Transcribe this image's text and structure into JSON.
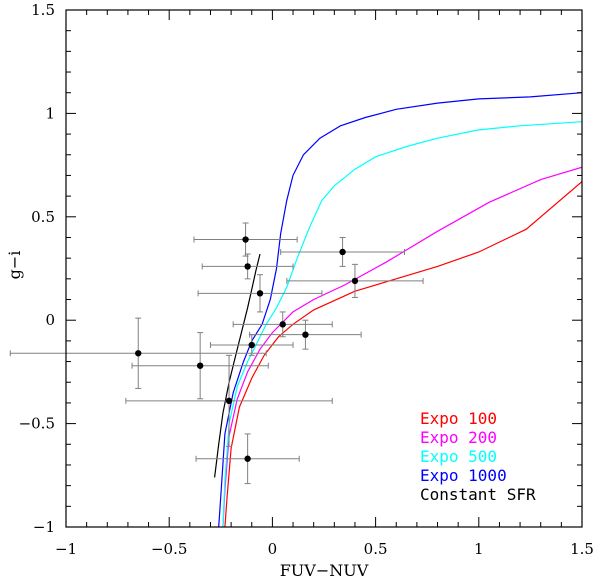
{
  "chart_data": {
    "type": "scatter",
    "title": "",
    "xlabel": "FUV−NUV",
    "ylabel": "g−i",
    "xlim": [
      -1,
      1.5
    ],
    "ylim": [
      -1,
      1.5
    ],
    "grid": false,
    "legend_position": "bottom-right",
    "x_ticks": [
      -1,
      -0.5,
      0,
      0.5,
      1,
      1.5
    ],
    "x_tick_labels": [
      "−1",
      "−0.5",
      "0",
      "0.5",
      "1",
      "1.5"
    ],
    "y_ticks": [
      -1,
      -0.5,
      0,
      0.5,
      1,
      1.5
    ],
    "y_tick_labels": [
      "−1",
      "−0.5",
      "0",
      "0.5",
      "1",
      "1.5"
    ],
    "series": [
      {
        "name": "Expo 100",
        "kind": "line",
        "color": "#ff0000",
        "x": [
          -0.23,
          -0.22,
          -0.2,
          -0.16,
          -0.1,
          -0.04,
          0.03,
          0.1,
          0.2,
          0.4,
          0.6,
          0.8,
          1.0,
          1.23,
          1.5
        ],
        "y": [
          -1.0,
          -0.86,
          -0.62,
          -0.42,
          -0.28,
          -0.17,
          -0.08,
          -0.02,
          0.05,
          0.14,
          0.2,
          0.26,
          0.33,
          0.44,
          0.67
        ]
      },
      {
        "name": "Expo 200",
        "kind": "line",
        "color": "#ff00ff",
        "x": [
          -0.24,
          -0.23,
          -0.21,
          -0.17,
          -0.12,
          -0.06,
          0.0,
          0.05,
          0.1,
          0.2,
          0.35,
          0.55,
          0.8,
          1.05,
          1.3,
          1.5
        ],
        "y": [
          -1.0,
          -0.82,
          -0.56,
          -0.38,
          -0.25,
          -0.14,
          -0.06,
          -0.01,
          0.04,
          0.1,
          0.17,
          0.28,
          0.43,
          0.57,
          0.68,
          0.74
        ]
      },
      {
        "name": "Expo 500",
        "kind": "line",
        "color": "#00ffff",
        "x": [
          -0.24,
          -0.23,
          -0.21,
          -0.17,
          -0.12,
          -0.07,
          -0.03,
          0.02,
          0.07,
          0.12,
          0.18,
          0.24,
          0.3,
          0.4,
          0.5,
          0.65,
          0.8,
          1.0,
          1.2,
          1.5
        ],
        "y": [
          -1.0,
          -0.78,
          -0.5,
          -0.32,
          -0.2,
          -0.1,
          -0.02,
          0.06,
          0.16,
          0.3,
          0.45,
          0.58,
          0.65,
          0.73,
          0.79,
          0.84,
          0.88,
          0.92,
          0.94,
          0.96
        ]
      },
      {
        "name": "Expo 1000",
        "kind": "line",
        "color": "#0000ff",
        "x": [
          -0.26,
          -0.25,
          -0.23,
          -0.19,
          -0.14,
          -0.1,
          -0.05,
          -0.01,
          0.02,
          0.04,
          0.07,
          0.1,
          0.15,
          0.23,
          0.33,
          0.45,
          0.6,
          0.8,
          1.0,
          1.25,
          1.5
        ],
        "y": [
          -1.0,
          -0.85,
          -0.55,
          -0.35,
          -0.2,
          -0.1,
          -0.02,
          0.1,
          0.25,
          0.42,
          0.58,
          0.7,
          0.8,
          0.88,
          0.94,
          0.98,
          1.02,
          1.05,
          1.07,
          1.08,
          1.1
        ]
      },
      {
        "name": "Constant SFR",
        "kind": "line",
        "color": "#000000",
        "x": [
          -0.28,
          -0.26,
          -0.24,
          -0.21,
          -0.18,
          -0.15,
          -0.12,
          -0.1,
          -0.08,
          -0.06
        ],
        "y": [
          -0.76,
          -0.6,
          -0.45,
          -0.3,
          -0.18,
          -0.06,
          0.06,
          0.15,
          0.24,
          0.32
        ]
      },
      {
        "name": "observations",
        "kind": "points",
        "color": "#000000",
        "error_color": "#808080",
        "points": [
          {
            "x": -0.65,
            "y": -0.16,
            "xerr": 0.62,
            "yerr": 0.17
          },
          {
            "x": -0.35,
            "y": -0.22,
            "xerr": 0.33,
            "yerr": 0.16
          },
          {
            "x": -0.21,
            "y": -0.39,
            "xerr": 0.5,
            "yerr": 0.22
          },
          {
            "x": -0.13,
            "y": 0.39,
            "xerr": 0.25,
            "yerr": 0.08
          },
          {
            "x": -0.12,
            "y": 0.26,
            "xerr": 0.22,
            "yerr": 0.06
          },
          {
            "x": -0.06,
            "y": 0.13,
            "xerr": 0.3,
            "yerr": 0.09
          },
          {
            "x": -0.1,
            "y": -0.12,
            "xerr": 0.2,
            "yerr": 0.05
          },
          {
            "x": 0.05,
            "y": -0.02,
            "xerr": 0.24,
            "yerr": 0.06
          },
          {
            "x": 0.16,
            "y": -0.07,
            "xerr": 0.27,
            "yerr": 0.07
          },
          {
            "x": 0.34,
            "y": 0.33,
            "xerr": 0.3,
            "yerr": 0.07
          },
          {
            "x": 0.4,
            "y": 0.19,
            "xerr": 0.33,
            "yerr": 0.08
          },
          {
            "x": -0.12,
            "y": -0.67,
            "xerr": 0.25,
            "yerr": 0.12
          }
        ]
      }
    ],
    "legend": [
      {
        "label": "Expo 100",
        "color": "#ff0000"
      },
      {
        "label": "Expo 200",
        "color": "#ff00ff"
      },
      {
        "label": "Expo 500",
        "color": "#00ffff"
      },
      {
        "label": "Expo 1000",
        "color": "#0000ff"
      },
      {
        "label": "Constant SFR",
        "color": "#000000"
      }
    ]
  }
}
